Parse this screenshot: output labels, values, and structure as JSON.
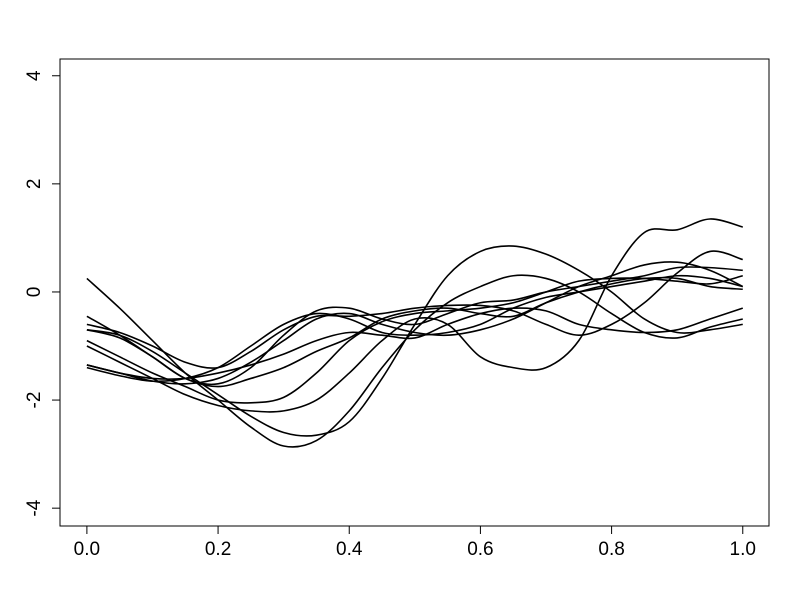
{
  "chart_data": {
    "type": "line",
    "x": [
      0,
      0.05,
      0.1,
      0.15,
      0.2,
      0.25,
      0.3,
      0.35,
      0.4,
      0.45,
      0.5,
      0.55,
      0.6,
      0.65,
      0.7,
      0.75,
      0.8,
      0.85,
      0.9,
      0.95,
      1.0
    ],
    "series": [
      {
        "color": "#000000",
        "values": [
          0.25,
          -0.3,
          -0.9,
          -1.5,
          -2.0,
          -2.5,
          -2.85,
          -2.75,
          -2.2,
          -1.4,
          -0.7,
          -0.2,
          0.1,
          0.3,
          0.25,
          0.0,
          -0.4,
          -0.75,
          -0.85,
          -0.65,
          -0.5
        ]
      },
      {
        "color": "#000000",
        "values": [
          -1.0,
          -1.3,
          -1.6,
          -1.9,
          -2.1,
          -2.2,
          -2.2,
          -2.0,
          -1.5,
          -0.9,
          -0.5,
          -0.6,
          -1.2,
          -1.4,
          -1.4,
          -0.9,
          0.3,
          1.1,
          1.15,
          1.35,
          1.2
        ]
      },
      {
        "color": "#000000",
        "values": [
          -0.7,
          -0.8,
          -1.1,
          -1.5,
          -1.9,
          -2.3,
          -2.6,
          -2.65,
          -2.4,
          -1.6,
          -0.6,
          0.3,
          0.75,
          0.85,
          0.7,
          0.4,
          0.0,
          -0.5,
          -0.75,
          -0.7,
          -0.6
        ]
      },
      {
        "color": "#000000",
        "values": [
          -1.35,
          -1.5,
          -1.65,
          -1.7,
          -1.6,
          -1.3,
          -0.9,
          -0.5,
          -0.4,
          -0.6,
          -0.75,
          -0.8,
          -0.7,
          -0.5,
          -0.2,
          0.1,
          0.3,
          0.5,
          0.55,
          0.4,
          0.1
        ]
      },
      {
        "color": "#000000",
        "values": [
          -1.4,
          -1.55,
          -1.65,
          -1.6,
          -1.4,
          -1.0,
          -0.6,
          -0.4,
          -0.5,
          -0.75,
          -0.8,
          -0.75,
          -0.6,
          -0.3,
          -0.1,
          0.0,
          0.1,
          0.2,
          0.3,
          0.25,
          0.1
        ]
      },
      {
        "color": "#000000",
        "values": [
          -0.45,
          -0.8,
          -1.2,
          -1.6,
          -1.7,
          -1.4,
          -0.8,
          -0.35,
          -0.3,
          -0.5,
          -0.6,
          -0.4,
          -0.2,
          -0.15,
          0.0,
          0.1,
          0.2,
          0.3,
          0.45,
          0.45,
          0.4
        ]
      },
      {
        "color": "#000000",
        "values": [
          -0.6,
          -0.75,
          -1.0,
          -1.3,
          -1.4,
          -1.1,
          -0.7,
          -0.45,
          -0.45,
          -0.4,
          -0.3,
          -0.25,
          -0.25,
          -0.35,
          -0.6,
          -0.8,
          -0.6,
          -0.2,
          0.35,
          0.75,
          0.6
        ]
      },
      {
        "color": "#000000",
        "values": [
          -0.9,
          -1.2,
          -1.5,
          -1.75,
          -2.0,
          -2.05,
          -1.95,
          -1.5,
          -0.9,
          -0.55,
          -0.4,
          -0.35,
          -0.3,
          -0.2,
          0.0,
          0.2,
          0.25,
          0.25,
          0.2,
          0.15,
          0.3
        ]
      },
      {
        "color": "#000000",
        "values": [
          -1.35,
          -1.5,
          -1.6,
          -1.6,
          -1.5,
          -1.35,
          -1.15,
          -0.9,
          -0.75,
          -0.8,
          -0.85,
          -0.6,
          -0.4,
          -0.3,
          -0.35,
          -0.6,
          -0.7,
          -0.75,
          -0.7,
          -0.5,
          -0.3
        ]
      },
      {
        "color": "#000000",
        "values": [
          -0.7,
          -0.85,
          -1.2,
          -1.6,
          -1.75,
          -1.6,
          -1.4,
          -1.1,
          -0.85,
          -0.5,
          -0.35,
          -0.3,
          -0.4,
          -0.45,
          -0.2,
          0.0,
          0.15,
          0.25,
          0.25,
          0.1,
          0.05
        ]
      }
    ],
    "xlim": [
      -0.041,
      1.04
    ],
    "ylim": [
      -4.33,
      4.31
    ],
    "xticks": [
      {
        "value": 0,
        "label": "0.0"
      },
      0.2,
      0.4,
      0.6,
      0.8,
      {
        "value": 1,
        "label": "1.0"
      }
    ],
    "yticks": [
      -4,
      -2,
      0,
      2,
      4
    ]
  }
}
